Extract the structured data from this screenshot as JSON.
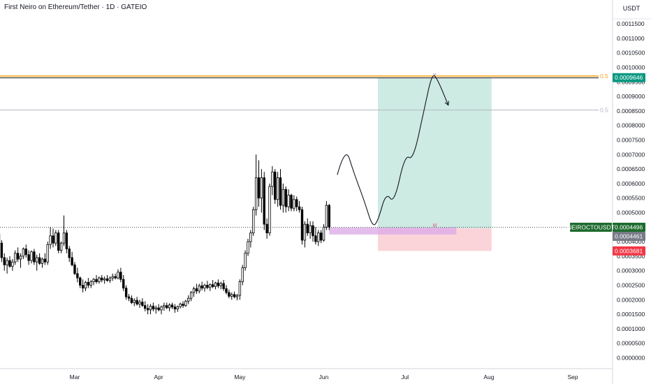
{
  "header": {
    "title": "First Neiro on Ethereum/Tether · 1D · GATEIO"
  },
  "axis": {
    "unit": "USDT"
  },
  "chart_data": {
    "type": "candlestick",
    "title": "First Neiro on Ethereum/Tether · 1D · GATEIO",
    "ylim": [
      0,
      0.00123
    ],
    "y_ticks": [
      "0.0011500",
      "0.0011000",
      "0.0010500",
      "0.0010000",
      "0.0009500",
      "0.0009000",
      "0.0008500",
      "0.0008000",
      "0.0007500",
      "0.0007000",
      "0.0006500",
      "0.0006000",
      "0.0005500",
      "0.0005000",
      "0.0004500",
      "0.0004000",
      "0.0003500",
      "0.0003000",
      "0.0002500",
      "0.0002000",
      "0.0001500",
      "0.0001000",
      "0.0000500",
      "0.0000000"
    ],
    "x_ticks": [
      "Mar",
      "Apr",
      "May",
      "Jun",
      "Jul",
      "Aug",
      "Sep"
    ],
    "x_tick_days": [
      28,
      59,
      89,
      120,
      150,
      181,
      212
    ],
    "last_price": {
      "label": "NEIROCTOUSDT",
      "value": "0.0004496",
      "raw": 0.0004496
    },
    "position": {
      "entry": "0.0004461",
      "entry_raw": 0.0004461,
      "target": "0.0009646",
      "target_raw": 0.0009646,
      "stop": "0.0003681",
      "stop_raw": 0.0003681,
      "start_day": 140,
      "end_day": 182
    },
    "fib_levels": [
      {
        "label": "0.5",
        "value": 0.00097,
        "color": "#f7a21b"
      },
      {
        "label": "0.5",
        "value": 0.000853,
        "color": "#b2b5be"
      }
    ],
    "projection_path": [
      [
        125,
        0.00063
      ],
      [
        128,
        0.00073
      ],
      [
        131,
        0.00064
      ],
      [
        135,
        0.00054
      ],
      [
        138,
        0.00045
      ],
      [
        140,
        0.00047
      ],
      [
        143,
        0.00057
      ],
      [
        146,
        0.00053
      ],
      [
        150,
        0.0007
      ],
      [
        153,
        0.00068
      ],
      [
        157,
        0.00085
      ],
      [
        160,
        0.00098
      ],
      [
        162,
        0.00096
      ],
      [
        166,
        0.00087
      ]
    ],
    "candles": [
      {
        "d": 0,
        "o": 0.000425,
        "h": 0.000435,
        "l": 0.000385,
        "c": 0.000395
      },
      {
        "d": 1,
        "o": 0.000395,
        "h": 0.000405,
        "l": 0.00033,
        "c": 0.000345
      },
      {
        "d": 2,
        "o": 0.000345,
        "h": 0.00036,
        "l": 0.0003,
        "c": 0.00032
      },
      {
        "d": 3,
        "o": 0.00032,
        "h": 0.000345,
        "l": 0.00029,
        "c": 0.000335
      },
      {
        "d": 4,
        "o": 0.000335,
        "h": 0.00035,
        "l": 0.00031,
        "c": 0.000315
      },
      {
        "d": 5,
        "o": 0.000315,
        "h": 0.00034,
        "l": 0.0003,
        "c": 0.00033
      },
      {
        "d": 6,
        "o": 0.00033,
        "h": 0.00037,
        "l": 0.00032,
        "c": 0.00036
      },
      {
        "d": 7,
        "o": 0.00036,
        "h": 0.00038,
        "l": 0.00033,
        "c": 0.00034
      },
      {
        "d": 8,
        "o": 0.00034,
        "h": 0.00036,
        "l": 0.00031,
        "c": 0.00035
      },
      {
        "d": 9,
        "o": 0.00035,
        "h": 0.00038,
        "l": 0.00034,
        "c": 0.000375
      },
      {
        "d": 10,
        "o": 0.000375,
        "h": 0.00039,
        "l": 0.000345,
        "c": 0.000355
      },
      {
        "d": 11,
        "o": 0.000355,
        "h": 0.00037,
        "l": 0.00032,
        "c": 0.000335
      },
      {
        "d": 12,
        "o": 0.000335,
        "h": 0.00037,
        "l": 0.000325,
        "c": 0.000365
      },
      {
        "d": 13,
        "o": 0.000365,
        "h": 0.000375,
        "l": 0.00032,
        "c": 0.00033
      },
      {
        "d": 14,
        "o": 0.00033,
        "h": 0.000355,
        "l": 0.0003,
        "c": 0.000345
      },
      {
        "d": 15,
        "o": 0.000345,
        "h": 0.00036,
        "l": 0.00032,
        "c": 0.000325
      },
      {
        "d": 16,
        "o": 0.000325,
        "h": 0.000345,
        "l": 0.00031,
        "c": 0.00034
      },
      {
        "d": 17,
        "o": 0.00034,
        "h": 0.00036,
        "l": 0.00032,
        "c": 0.00033
      },
      {
        "d": 18,
        "o": 0.00033,
        "h": 0.0004,
        "l": 0.00032,
        "c": 0.00039
      },
      {
        "d": 19,
        "o": 0.00039,
        "h": 0.00045,
        "l": 0.000375,
        "c": 0.00042
      },
      {
        "d": 20,
        "o": 0.00042,
        "h": 0.000445,
        "l": 0.00038,
        "c": 0.000395
      },
      {
        "d": 21,
        "o": 0.000395,
        "h": 0.00044,
        "l": 0.000385,
        "c": 0.00043
      },
      {
        "d": 22,
        "o": 0.00043,
        "h": 0.00044,
        "l": 0.00036,
        "c": 0.00037
      },
      {
        "d": 23,
        "o": 0.00037,
        "h": 0.0004,
        "l": 0.00036,
        "c": 0.000395
      },
      {
        "d": 24,
        "o": 0.000395,
        "h": 0.00049,
        "l": 0.000385,
        "c": 0.00043
      },
      {
        "d": 25,
        "o": 0.00043,
        "h": 0.00044,
        "l": 0.00036,
        "c": 0.000375
      },
      {
        "d": 26,
        "o": 0.000375,
        "h": 0.000385,
        "l": 0.00033,
        "c": 0.000345
      },
      {
        "d": 27,
        "o": 0.000345,
        "h": 0.000365,
        "l": 0.000315,
        "c": 0.00032
      },
      {
        "d": 28,
        "o": 0.00032,
        "h": 0.00033,
        "l": 0.000285,
        "c": 0.00029
      },
      {
        "d": 29,
        "o": 0.00029,
        "h": 0.00031,
        "l": 0.00026,
        "c": 0.000275
      },
      {
        "d": 30,
        "o": 0.000275,
        "h": 0.00028,
        "l": 0.00024,
        "c": 0.00025
      },
      {
        "d": 31,
        "o": 0.00025,
        "h": 0.00027,
        "l": 0.000225,
        "c": 0.00024
      },
      {
        "d": 32,
        "o": 0.00024,
        "h": 0.000265,
        "l": 0.00023,
        "c": 0.00026
      },
      {
        "d": 33,
        "o": 0.00026,
        "h": 0.000275,
        "l": 0.00024,
        "c": 0.00025
      },
      {
        "d": 34,
        "o": 0.00025,
        "h": 0.000268,
        "l": 0.00024,
        "c": 0.000262
      },
      {
        "d": 35,
        "o": 0.000262,
        "h": 0.000275,
        "l": 0.00025,
        "c": 0.00027
      },
      {
        "d": 36,
        "o": 0.00027,
        "h": 0.000285,
        "l": 0.000255,
        "c": 0.000262
      },
      {
        "d": 37,
        "o": 0.000262,
        "h": 0.00028,
        "l": 0.000255,
        "c": 0.000275
      },
      {
        "d": 38,
        "o": 0.000275,
        "h": 0.000285,
        "l": 0.00026,
        "c": 0.000268
      },
      {
        "d": 39,
        "o": 0.000268,
        "h": 0.00028,
        "l": 0.000255,
        "c": 0.000272
      },
      {
        "d": 40,
        "o": 0.000272,
        "h": 0.000285,
        "l": 0.000262,
        "c": 0.000266
      },
      {
        "d": 41,
        "o": 0.000266,
        "h": 0.00028,
        "l": 0.000258,
        "c": 0.000275
      },
      {
        "d": 42,
        "o": 0.000275,
        "h": 0.00029,
        "l": 0.000265,
        "c": 0.00028
      },
      {
        "d": 43,
        "o": 0.00028,
        "h": 0.00029,
        "l": 0.00027,
        "c": 0.000275
      },
      {
        "d": 44,
        "o": 0.000275,
        "h": 0.000305,
        "l": 0.00027,
        "c": 0.000295
      },
      {
        "d": 45,
        "o": 0.000295,
        "h": 0.00031,
        "l": 0.00026,
        "c": 0.00027
      },
      {
        "d": 46,
        "o": 0.00027,
        "h": 0.000285,
        "l": 0.00023,
        "c": 0.00024
      },
      {
        "d": 47,
        "o": 0.00024,
        "h": 0.00025,
        "l": 0.0002,
        "c": 0.00021
      },
      {
        "d": 48,
        "o": 0.00021,
        "h": 0.00022,
        "l": 0.000195,
        "c": 0.000205
      },
      {
        "d": 49,
        "o": 0.000205,
        "h": 0.000215,
        "l": 0.000185,
        "c": 0.00019
      },
      {
        "d": 50,
        "o": 0.00019,
        "h": 0.000205,
        "l": 0.000178,
        "c": 0.000198
      },
      {
        "d": 51,
        "o": 0.000198,
        "h": 0.00021,
        "l": 0.00018,
        "c": 0.000185
      },
      {
        "d": 52,
        "o": 0.000185,
        "h": 0.0002,
        "l": 0.000172,
        "c": 0.000192
      },
      {
        "d": 53,
        "o": 0.000192,
        "h": 0.000205,
        "l": 0.000175,
        "c": 0.00018
      },
      {
        "d": 54,
        "o": 0.00018,
        "h": 0.000195,
        "l": 0.00016,
        "c": 0.00017
      },
      {
        "d": 55,
        "o": 0.00017,
        "h": 0.000185,
        "l": 0.00015,
        "c": 0.000165
      },
      {
        "d": 56,
        "o": 0.000165,
        "h": 0.000185,
        "l": 0.00015,
        "c": 0.000178
      },
      {
        "d": 57,
        "o": 0.000178,
        "h": 0.00019,
        "l": 0.00016,
        "c": 0.000168
      },
      {
        "d": 58,
        "o": 0.000168,
        "h": 0.00018,
        "l": 0.000152,
        "c": 0.000172
      },
      {
        "d": 59,
        "o": 0.000172,
        "h": 0.000185,
        "l": 0.00016,
        "c": 0.000165
      },
      {
        "d": 60,
        "o": 0.000165,
        "h": 0.00018,
        "l": 0.00015,
        "c": 0.000175
      },
      {
        "d": 61,
        "o": 0.000175,
        "h": 0.00019,
        "l": 0.000162,
        "c": 0.00018
      },
      {
        "d": 62,
        "o": 0.00018,
        "h": 0.00019,
        "l": 0.000168,
        "c": 0.000172
      },
      {
        "d": 63,
        "o": 0.000172,
        "h": 0.000188,
        "l": 0.00016,
        "c": 0.000182
      },
      {
        "d": 64,
        "o": 0.000182,
        "h": 0.00019,
        "l": 0.000168,
        "c": 0.000175
      },
      {
        "d": 65,
        "o": 0.000175,
        "h": 0.000185,
        "l": 0.000155,
        "c": 0.000168
      },
      {
        "d": 66,
        "o": 0.000168,
        "h": 0.00018,
        "l": 0.000158,
        "c": 0.000176
      },
      {
        "d": 67,
        "o": 0.000176,
        "h": 0.00019,
        "l": 0.00017,
        "c": 0.000185
      },
      {
        "d": 68,
        "o": 0.000185,
        "h": 0.000195,
        "l": 0.000172,
        "c": 0.00018
      },
      {
        "d": 69,
        "o": 0.00018,
        "h": 0.0002,
        "l": 0.000175,
        "c": 0.000195
      },
      {
        "d": 70,
        "o": 0.000195,
        "h": 0.000215,
        "l": 0.000185,
        "c": 0.000205
      },
      {
        "d": 71,
        "o": 0.000205,
        "h": 0.00023,
        "l": 0.000195,
        "c": 0.000225
      },
      {
        "d": 72,
        "o": 0.000225,
        "h": 0.000245,
        "l": 0.00021,
        "c": 0.000238
      },
      {
        "d": 73,
        "o": 0.000238,
        "h": 0.000255,
        "l": 0.00022,
        "c": 0.00023
      },
      {
        "d": 74,
        "o": 0.00023,
        "h": 0.000255,
        "l": 0.000222,
        "c": 0.000248
      },
      {
        "d": 75,
        "o": 0.000248,
        "h": 0.000262,
        "l": 0.000232,
        "c": 0.00024
      },
      {
        "d": 76,
        "o": 0.00024,
        "h": 0.000255,
        "l": 0.000228,
        "c": 0.00025
      },
      {
        "d": 77,
        "o": 0.00025,
        "h": 0.000265,
        "l": 0.000236,
        "c": 0.000242
      },
      {
        "d": 78,
        "o": 0.000242,
        "h": 0.000256,
        "l": 0.00023,
        "c": 0.000252
      },
      {
        "d": 79,
        "o": 0.000252,
        "h": 0.000268,
        "l": 0.00024,
        "c": 0.000245
      },
      {
        "d": 80,
        "o": 0.000245,
        "h": 0.000262,
        "l": 0.000236,
        "c": 0.000258
      },
      {
        "d": 81,
        "o": 0.000258,
        "h": 0.00027,
        "l": 0.00024,
        "c": 0.000248
      },
      {
        "d": 82,
        "o": 0.000248,
        "h": 0.000262,
        "l": 0.000236,
        "c": 0.000256
      },
      {
        "d": 83,
        "o": 0.000256,
        "h": 0.000268,
        "l": 0.00023,
        "c": 0.000238
      },
      {
        "d": 84,
        "o": 0.000238,
        "h": 0.00025,
        "l": 0.000218,
        "c": 0.000225
      },
      {
        "d": 85,
        "o": 0.000225,
        "h": 0.000235,
        "l": 0.000205,
        "c": 0.000212
      },
      {
        "d": 86,
        "o": 0.000212,
        "h": 0.000225,
        "l": 0.0002,
        "c": 0.000218
      },
      {
        "d": 87,
        "o": 0.000218,
        "h": 0.000228,
        "l": 0.000205,
        "c": 0.00021
      },
      {
        "d": 88,
        "o": 0.00021,
        "h": 0.00022,
        "l": 0.000198,
        "c": 0.000215
      },
      {
        "d": 89,
        "o": 0.000215,
        "h": 0.00027,
        "l": 0.0002,
        "c": 0.000262
      },
      {
        "d": 90,
        "o": 0.000262,
        "h": 0.00032,
        "l": 0.00025,
        "c": 0.00031
      },
      {
        "d": 91,
        "o": 0.00031,
        "h": 0.00037,
        "l": 0.0003,
        "c": 0.00036
      },
      {
        "d": 92,
        "o": 0.00036,
        "h": 0.00041,
        "l": 0.00035,
        "c": 0.0004
      },
      {
        "d": 93,
        "o": 0.0004,
        "h": 0.00044,
        "l": 0.00038,
        "c": 0.00043
      },
      {
        "d": 94,
        "o": 0.00043,
        "h": 0.00052,
        "l": 0.00042,
        "c": 0.00051
      },
      {
        "d": 95,
        "o": 0.00051,
        "h": 0.0007,
        "l": 0.00049,
        "c": 0.00062
      },
      {
        "d": 96,
        "o": 0.00062,
        "h": 0.00068,
        "l": 0.00052,
        "c": 0.00055
      },
      {
        "d": 97,
        "o": 0.00055,
        "h": 0.00065,
        "l": 0.0005,
        "c": 0.00062
      },
      {
        "d": 98,
        "o": 0.00062,
        "h": 0.00064,
        "l": 0.00044,
        "c": 0.00046
      },
      {
        "d": 99,
        "o": 0.00046,
        "h": 0.00048,
        "l": 0.00041,
        "c": 0.00043
      },
      {
        "d": 100,
        "o": 0.00043,
        "h": 0.0006,
        "l": 0.00042,
        "c": 0.00059
      },
      {
        "d": 101,
        "o": 0.00059,
        "h": 0.00066,
        "l": 0.00056,
        "c": 0.00064
      },
      {
        "d": 102,
        "o": 0.00064,
        "h": 0.00065,
        "l": 0.00053,
        "c": 0.000545
      },
      {
        "d": 103,
        "o": 0.000545,
        "h": 0.00064,
        "l": 0.00052,
        "c": 0.00062
      },
      {
        "d": 104,
        "o": 0.00062,
        "h": 0.00065,
        "l": 0.00051,
        "c": 0.000525
      },
      {
        "d": 105,
        "o": 0.000525,
        "h": 0.0006,
        "l": 0.0005,
        "c": 0.00058
      },
      {
        "d": 106,
        "o": 0.00058,
        "h": 0.00059,
        "l": 0.0005,
        "c": 0.00052
      },
      {
        "d": 107,
        "o": 0.00052,
        "h": 0.00058,
        "l": 0.000505,
        "c": 0.00056
      },
      {
        "d": 108,
        "o": 0.00056,
        "h": 0.000565,
        "l": 0.000505,
        "c": 0.000515
      },
      {
        "d": 109,
        "o": 0.000515,
        "h": 0.00056,
        "l": 0.000505,
        "c": 0.000545
      },
      {
        "d": 110,
        "o": 0.000545,
        "h": 0.000555,
        "l": 0.000505,
        "c": 0.00052
      },
      {
        "d": 111,
        "o": 0.00052,
        "h": 0.00054,
        "l": 0.0005,
        "c": 0.00051
      },
      {
        "d": 112,
        "o": 0.00051,
        "h": 0.00052,
        "l": 0.00039,
        "c": 0.000405
      },
      {
        "d": 113,
        "o": 0.000405,
        "h": 0.00047,
        "l": 0.00038,
        "c": 0.00046
      },
      {
        "d": 114,
        "o": 0.00046,
        "h": 0.00048,
        "l": 0.00042,
        "c": 0.00043
      },
      {
        "d": 115,
        "o": 0.00043,
        "h": 0.00047,
        "l": 0.00041,
        "c": 0.000455
      },
      {
        "d": 116,
        "o": 0.000455,
        "h": 0.00047,
        "l": 0.0004,
        "c": 0.00042
      },
      {
        "d": 117,
        "o": 0.00042,
        "h": 0.00045,
        "l": 0.00039,
        "c": 0.0004
      },
      {
        "d": 118,
        "o": 0.0004,
        "h": 0.00044,
        "l": 0.000385,
        "c": 0.00043
      },
      {
        "d": 119,
        "o": 0.00043,
        "h": 0.00044,
        "l": 0.000395,
        "c": 0.000405
      },
      {
        "d": 120,
        "o": 0.000405,
        "h": 0.00046,
        "l": 0.0004,
        "c": 0.00045
      },
      {
        "d": 121,
        "o": 0.00045,
        "h": 0.00054,
        "l": 0.00044,
        "c": 0.000525
      },
      {
        "d": 122,
        "o": 0.000525,
        "h": 0.00053,
        "l": 0.00044,
        "c": 0.00045
      }
    ]
  },
  "colors": {
    "candle": "#000000",
    "grid_price_line": "#b2b5be",
    "target_badge": "#089981",
    "entry_badge": "#787b86",
    "stop_badge": "#f23645",
    "symbol_badge": "#22ab94",
    "profit_zone": "#cdeae3",
    "loss_zone": "#fad4d9",
    "fib_orange": "#f7a21b"
  }
}
